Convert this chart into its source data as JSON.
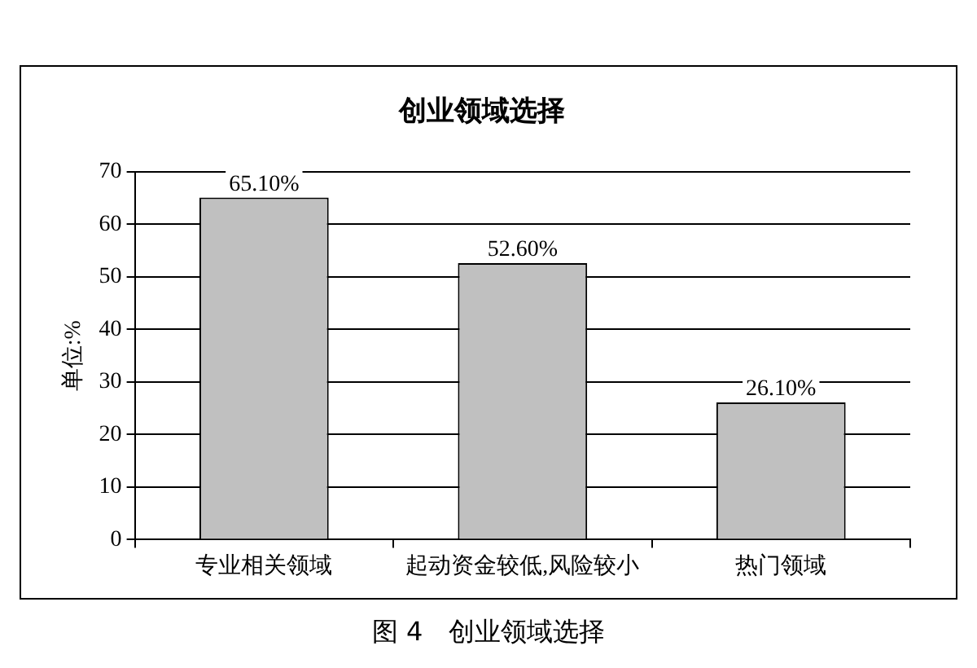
{
  "chart_data": {
    "type": "bar",
    "title": "创业领域选择",
    "ylabel": "单位:%",
    "categories": [
      "专业相关领域",
      "起动资金较低,风险较小",
      "热门领域"
    ],
    "values": [
      65.1,
      52.6,
      26.1
    ],
    "value_labels": [
      "65.10%",
      "52.60%",
      "26.10%"
    ],
    "color": "#c0c0c0",
    "ylim": [
      0,
      70
    ],
    "yticks": [
      0,
      10,
      20,
      30,
      40,
      50,
      60,
      70
    ],
    "grid": "y",
    "annotations": [
      "图 4　创业领域选择"
    ]
  }
}
